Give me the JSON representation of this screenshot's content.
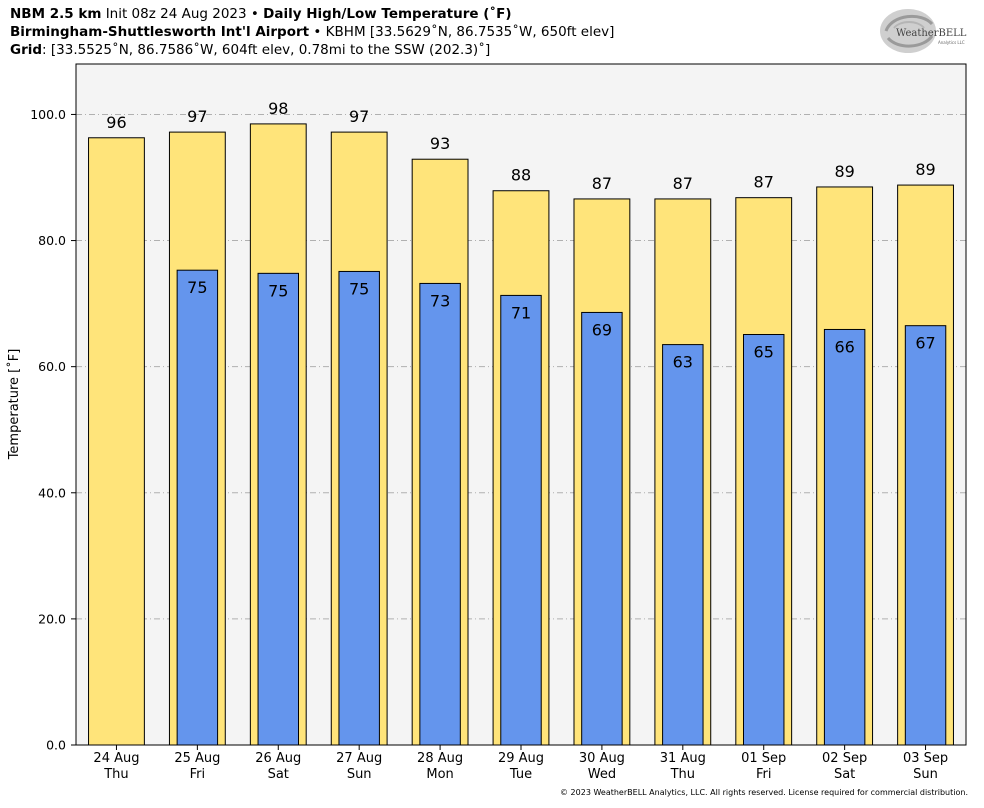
{
  "header": {
    "line1": {
      "model": "NBM 2.5 km",
      "init": "Init 08z 24 Aug 2023",
      "sep": "•",
      "product": "Daily High/Low Temperature (˚F)"
    },
    "line2": {
      "station": "Birmingham-Shuttlesworth Int'l Airport",
      "sep": "•",
      "detail": "KBHM [33.5629˚N, 86.7535˚W, 650ft elev]"
    },
    "line3": {
      "label": "Grid",
      "detail": ": [33.5525˚N, 86.7586˚W, 604ft elev, 0.78mi to the SSW (202.3)˚]"
    }
  },
  "logo": {
    "text": "WeatherBELL",
    "sub": "Analytics LLC"
  },
  "copyright": "© 2023 WeatherBELL Analytics, LLC. All rights reserved. License required for commercial distribution.",
  "colors": {
    "high": "#ffe47a",
    "low": "#6495ed",
    "plot_bg": "#f4f4f4",
    "grid": "#b0b0b0"
  },
  "chart_data": {
    "type": "bar",
    "title": "Daily High/Low Temperature (˚F)",
    "xlabel": "",
    "ylabel": "Temperature [˚F]",
    "ylim": [
      0,
      108
    ],
    "yticks": [
      "0.0",
      "20.0",
      "40.0",
      "60.0",
      "80.0",
      "100.0"
    ],
    "grid": true,
    "categories": [
      {
        "date": "24 Aug",
        "day": "Thu"
      },
      {
        "date": "25 Aug",
        "day": "Fri"
      },
      {
        "date": "26 Aug",
        "day": "Sat"
      },
      {
        "date": "27 Aug",
        "day": "Sun"
      },
      {
        "date": "28 Aug",
        "day": "Mon"
      },
      {
        "date": "29 Aug",
        "day": "Tue"
      },
      {
        "date": "30 Aug",
        "day": "Wed"
      },
      {
        "date": "31 Aug",
        "day": "Thu"
      },
      {
        "date": "01 Sep",
        "day": "Fri"
      },
      {
        "date": "02 Sep",
        "day": "Sat"
      },
      {
        "date": "03 Sep",
        "day": "Sun"
      }
    ],
    "series": [
      {
        "key": "high",
        "values": [
          96.3,
          97.2,
          98.5,
          97.2,
          92.9,
          87.9,
          86.6,
          86.6,
          86.8,
          88.5,
          88.8
        ],
        "labels": [
          "96",
          "97",
          "98",
          "97",
          "93",
          "88",
          "87",
          "87",
          "87",
          "89",
          "89"
        ]
      },
      {
        "key": "low",
        "values": [
          null,
          75.3,
          74.8,
          75.1,
          73.2,
          71.3,
          68.6,
          63.5,
          65.1,
          65.9,
          66.5
        ],
        "labels": [
          "",
          "75",
          "75",
          "75",
          "73",
          "71",
          "69",
          "63",
          "65",
          "66",
          "67"
        ]
      }
    ]
  }
}
